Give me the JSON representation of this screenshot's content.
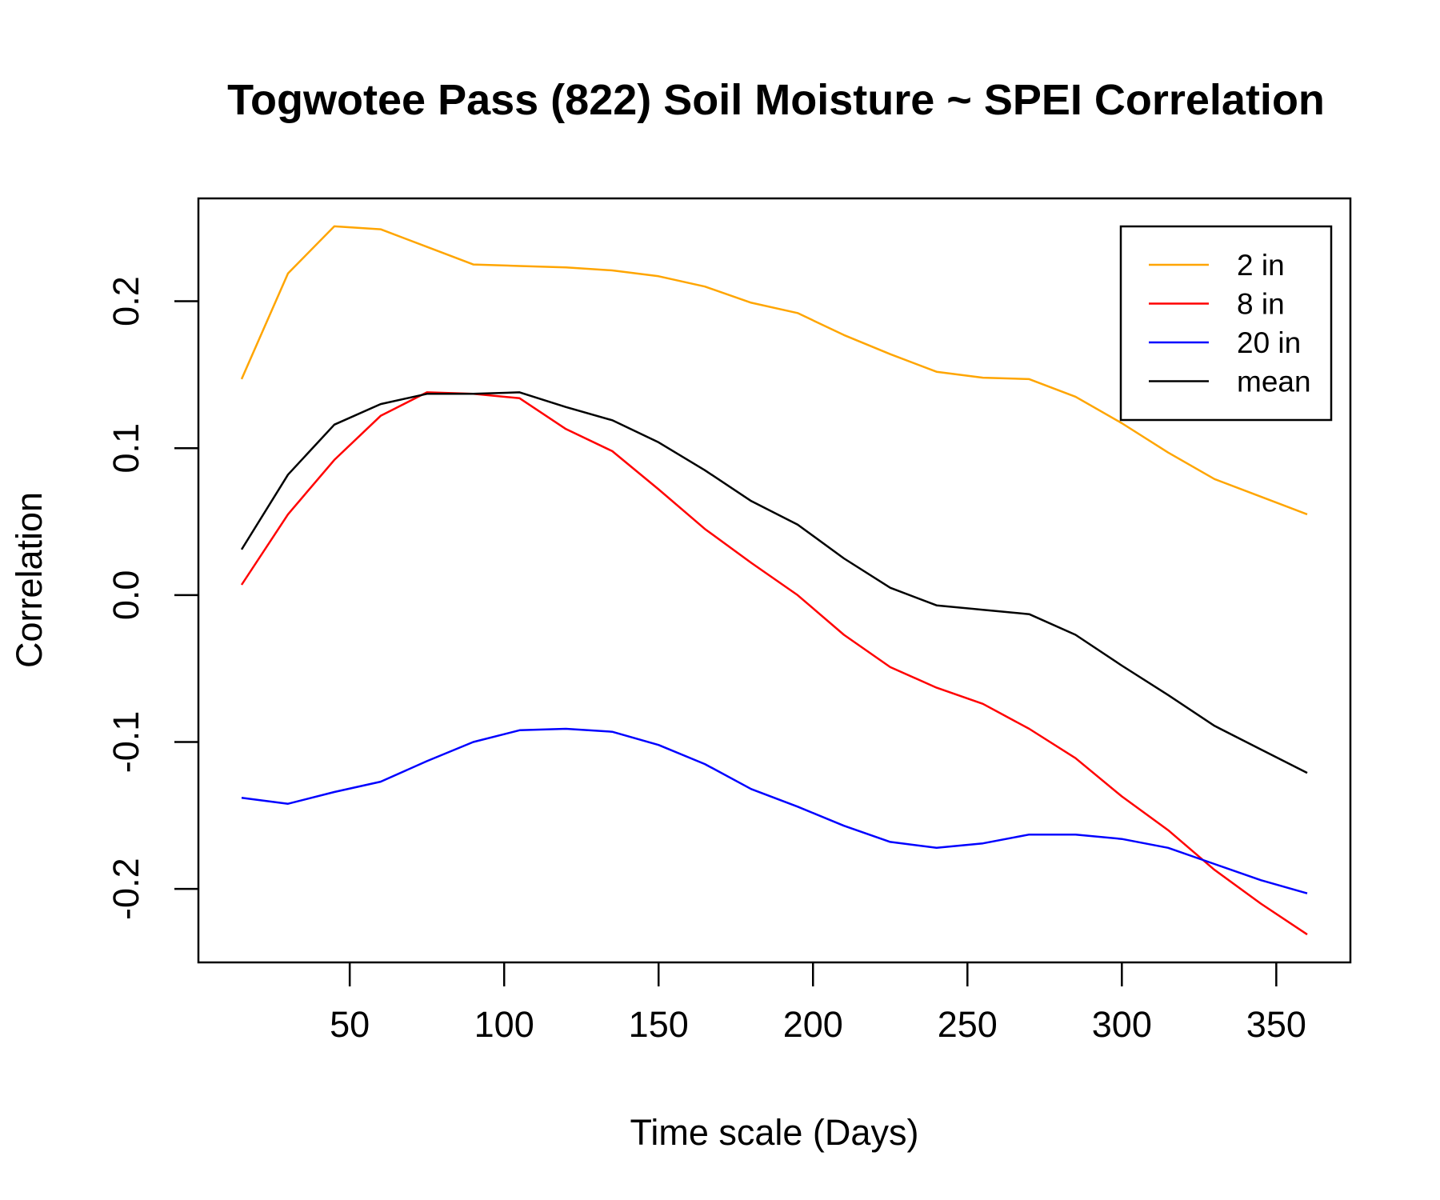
{
  "chart_data": {
    "type": "line",
    "title": "Togwotee Pass (822) Soil Moisture ~ SPEI Correlation",
    "xlabel": "Time scale (Days)",
    "ylabel": "Correlation",
    "xlim": [
      1,
      374
    ],
    "ylim": [
      -0.25,
      0.27
    ],
    "x_ticks": [
      50,
      100,
      150,
      200,
      250,
      300,
      350
    ],
    "x_tick_labels": [
      "50",
      "100",
      "150",
      "200",
      "250",
      "300",
      "350"
    ],
    "y_ticks": [
      -0.2,
      -0.1,
      0.0,
      0.1,
      0.2
    ],
    "y_tick_labels": [
      "-0.2",
      "-0.1",
      "0.0",
      "0.1",
      "0.2"
    ],
    "grid": false,
    "legend_position": "top-right",
    "x": [
      15,
      30,
      45,
      60,
      75,
      90,
      105,
      120,
      135,
      150,
      165,
      180,
      195,
      210,
      225,
      240,
      255,
      270,
      285,
      300,
      315,
      330,
      345,
      360
    ],
    "series": [
      {
        "name": "2 in",
        "color": "#FFA500",
        "values": [
          0.147,
          0.219,
          0.251,
          0.249,
          0.237,
          0.225,
          0.224,
          0.223,
          0.221,
          0.217,
          0.21,
          0.199,
          0.192,
          0.177,
          0.164,
          0.152,
          0.148,
          0.147,
          0.135,
          0.117,
          0.097,
          0.079,
          0.067,
          0.055
        ]
      },
      {
        "name": "8 in",
        "color": "#FF0000",
        "values": [
          0.007,
          0.055,
          0.092,
          0.122,
          0.138,
          0.137,
          0.134,
          0.113,
          0.098,
          0.072,
          0.045,
          0.022,
          0.0,
          -0.027,
          -0.049,
          -0.063,
          -0.074,
          -0.091,
          -0.111,
          -0.137,
          -0.16,
          -0.187,
          -0.21,
          -0.231
        ]
      },
      {
        "name": "20 in",
        "color": "#0000FF",
        "values": [
          -0.138,
          -0.142,
          -0.134,
          -0.127,
          -0.113,
          -0.1,
          -0.092,
          -0.091,
          -0.093,
          -0.102,
          -0.115,
          -0.132,
          -0.144,
          -0.157,
          -0.168,
          -0.172,
          -0.169,
          -0.163,
          -0.163,
          -0.166,
          -0.172,
          -0.183,
          -0.194,
          -0.203
        ]
      },
      {
        "name": "mean",
        "color": "#000000",
        "values": [
          0.031,
          0.082,
          0.116,
          0.13,
          0.137,
          0.137,
          0.138,
          0.128,
          0.119,
          0.104,
          0.085,
          0.064,
          0.048,
          0.025,
          0.005,
          -0.007,
          -0.01,
          -0.013,
          -0.027,
          -0.048,
          -0.068,
          -0.089,
          -0.105,
          -0.121
        ]
      }
    ]
  }
}
